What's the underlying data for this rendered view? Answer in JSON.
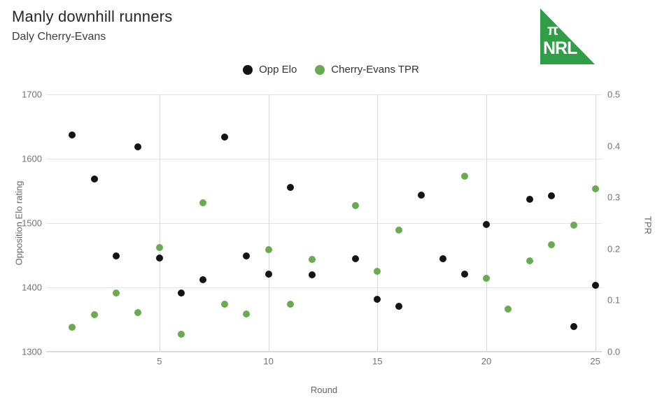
{
  "header": {
    "title": "Manly downhill runners",
    "subtitle": "Daly Cherry-Evans"
  },
  "logo": {
    "pi": "π",
    "text": "NRL",
    "color": "#2f9e44"
  },
  "legend": [
    {
      "label": "Opp Elo",
      "color": "#141414"
    },
    {
      "label": "Cherry-Evans TPR",
      "color": "#6aaa50"
    }
  ],
  "chart_data": {
    "type": "scatter",
    "title": "Manly downhill runners",
    "subtitle": "Daly Cherry-Evans",
    "xlabel": "Round",
    "ylabel_left": "Opposition Elo rating",
    "ylabel_right": "TPR",
    "grid": true,
    "legend_position": "top-center",
    "xlim": [
      -0.2,
      25.3
    ],
    "ylim_left": [
      1300,
      1700
    ],
    "ylim_right": [
      0.0,
      0.5
    ],
    "x_ticks": [
      5,
      10,
      15,
      20,
      25
    ],
    "y_ticks_left": [
      1700,
      1600,
      1500,
      1400,
      1300
    ],
    "y_ticks_right": [
      "0.5",
      "0.4",
      "0.3",
      "0.2",
      "0.1",
      "0.0"
    ],
    "series": [
      {
        "name": "Opp Elo",
        "axis": "left",
        "color": "#141414",
        "points": [
          [
            1,
            1637
          ],
          [
            2,
            1568
          ],
          [
            3,
            1449
          ],
          [
            4,
            1619
          ],
          [
            5,
            1446
          ],
          [
            6,
            1391
          ],
          [
            7,
            1412
          ],
          [
            8,
            1634
          ],
          [
            9,
            1449
          ],
          [
            10,
            1421
          ],
          [
            11,
            1555
          ],
          [
            12,
            1420
          ],
          [
            14,
            1445
          ],
          [
            15,
            1381
          ],
          [
            16,
            1371
          ],
          [
            17,
            1543
          ],
          [
            18,
            1445
          ],
          [
            19,
            1421
          ],
          [
            20,
            1498
          ],
          [
            22,
            1537
          ],
          [
            23,
            1542
          ],
          [
            24,
            1339
          ],
          [
            25,
            1403
          ]
        ]
      },
      {
        "name": "Cherry-Evans TPR",
        "axis": "right",
        "color": "#6aaa50",
        "points": [
          [
            1,
            0.047
          ],
          [
            2,
            0.072
          ],
          [
            3,
            0.114
          ],
          [
            4,
            0.076
          ],
          [
            5,
            0.202
          ],
          [
            6,
            0.034
          ],
          [
            7,
            0.289
          ],
          [
            8,
            0.092
          ],
          [
            9,
            0.073
          ],
          [
            10,
            0.198
          ],
          [
            11,
            0.093
          ],
          [
            12,
            0.18
          ],
          [
            14,
            0.284
          ],
          [
            15,
            0.156
          ],
          [
            16,
            0.236
          ],
          [
            19,
            0.341
          ],
          [
            20,
            0.143
          ],
          [
            21,
            0.083
          ],
          [
            22,
            0.177
          ],
          [
            23,
            0.208
          ],
          [
            24,
            0.246
          ],
          [
            25,
            0.316
          ]
        ]
      }
    ]
  }
}
